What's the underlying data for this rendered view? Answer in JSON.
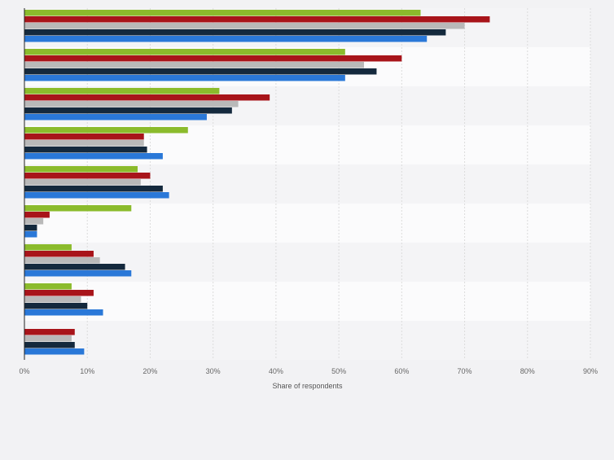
{
  "chart_data": {
    "type": "bar",
    "orientation": "horizontal",
    "categories": [
      "",
      "",
      "",
      "",
      "",
      "",
      "",
      "",
      ""
    ],
    "series": [
      {
        "color": "#8bbb2c",
        "values": [
          63,
          51,
          31,
          26,
          18,
          17,
          7.5,
          7.5,
          null
        ]
      },
      {
        "color": "#a8141a",
        "values": [
          74,
          60,
          39,
          19,
          20,
          4,
          11,
          11,
          8
        ]
      },
      {
        "color": "#b9b9b9",
        "values": [
          70,
          54,
          34,
          19,
          18.5,
          3,
          12,
          9,
          7.5
        ]
      },
      {
        "color": "#14293d",
        "values": [
          67,
          56,
          33,
          19.5,
          22,
          2,
          16,
          10,
          8
        ]
      },
      {
        "color": "#2a78d8",
        "values": [
          64,
          51,
          29,
          22,
          23,
          2,
          17,
          12.5,
          9.5
        ]
      }
    ],
    "xlabel": "Share of respondents",
    "ylabel": "",
    "xlim": [
      0,
      90
    ],
    "x_ticks": [
      "0%",
      "10%",
      "20%",
      "30%",
      "40%",
      "50%",
      "60%",
      "70%",
      "80%",
      "90%"
    ],
    "grid": true,
    "legend": "none"
  }
}
